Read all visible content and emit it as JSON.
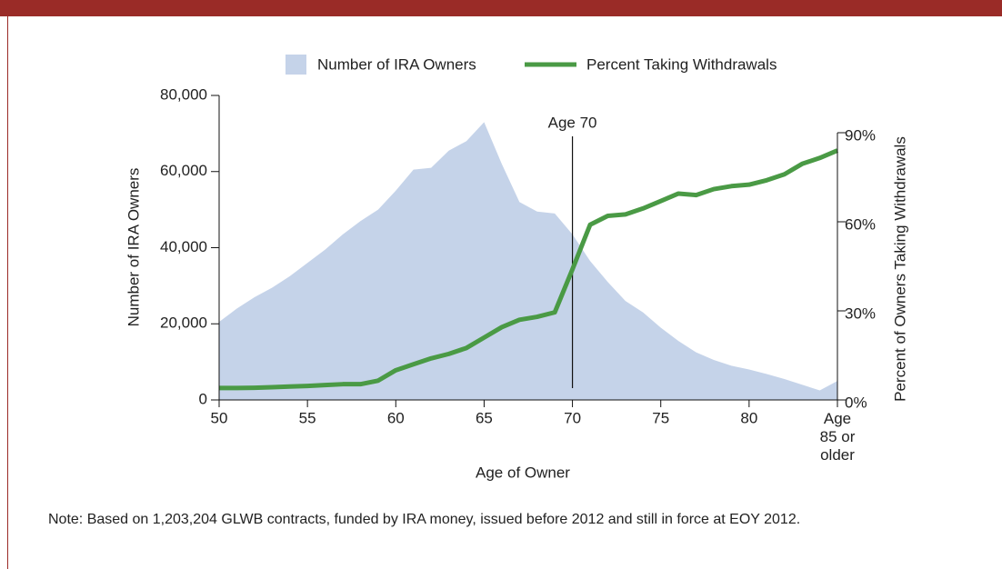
{
  "chart_data": {
    "type": "area-line",
    "x": [
      50,
      51,
      52,
      53,
      54,
      55,
      56,
      57,
      58,
      59,
      60,
      61,
      62,
      63,
      64,
      65,
      66,
      67,
      68,
      69,
      70,
      71,
      72,
      73,
      74,
      75,
      76,
      77,
      78,
      79,
      80,
      81,
      82,
      83,
      84,
      85
    ],
    "series": [
      {
        "name": "Number of IRA Owners",
        "type": "area",
        "color": "#c5d3e9",
        "axis": "y",
        "values": [
          20500,
          24000,
          27000,
          29500,
          32500,
          36000,
          39500,
          43500,
          47000,
          50000,
          55000,
          60500,
          61000,
          65500,
          68000,
          73000,
          62000,
          52000,
          49500,
          49000,
          43500,
          36500,
          31000,
          26000,
          23000,
          19000,
          15500,
          12500,
          10500,
          9000,
          8000,
          6800,
          5500,
          4000,
          2500,
          5000
        ]
      },
      {
        "name": "Percent Taking Withdrawals",
        "type": "line",
        "color": "#4a9a45",
        "axis": "y2",
        "values": [
          4.0,
          4.0,
          4.1,
          4.3,
          4.5,
          4.7,
          5.0,
          5.3,
          5.3,
          6.5,
          10,
          12,
          14,
          15.5,
          17.5,
          21,
          24.5,
          27,
          28,
          29.5,
          44,
          59,
          62,
          62.5,
          64.5,
          67,
          69.5,
          69,
          71,
          72,
          72.5,
          74,
          76,
          79.5,
          81.5,
          84
        ]
      }
    ],
    "xlabel": "Age of Owner",
    "ylabel": "Number of IRA Owners",
    "y2label": "Percent of Owners Taking Withdrawals",
    "xlim": [
      50,
      85
    ],
    "xticks": [
      50,
      55,
      60,
      65,
      70,
      75,
      80,
      {
        "value": 85,
        "label": "Age\n85 or\nolder"
      }
    ],
    "ylim": [
      0,
      80000
    ],
    "yticks": [
      0,
      {
        "value": 20000,
        "label": "20,000"
      },
      {
        "value": 40000,
        "label": "40,000"
      },
      {
        "value": 60000,
        "label": "60,000"
      },
      {
        "value": 80000,
        "label": "80,000"
      }
    ],
    "y2lim": [
      0,
      90
    ],
    "y2ticks": [
      {
        "value": 0,
        "label": "0%"
      },
      {
        "value": 30,
        "label": "30%"
      },
      {
        "value": 60,
        "label": "60%"
      },
      {
        "value": 90,
        "label": "90%"
      }
    ],
    "annotations": [
      {
        "text": "Age 70",
        "x": 70
      }
    ],
    "note": "Note: Based on 1,203,204 GLWB contracts, funded by IRA money, issued before 2012 and still in force at EOY 2012."
  }
}
